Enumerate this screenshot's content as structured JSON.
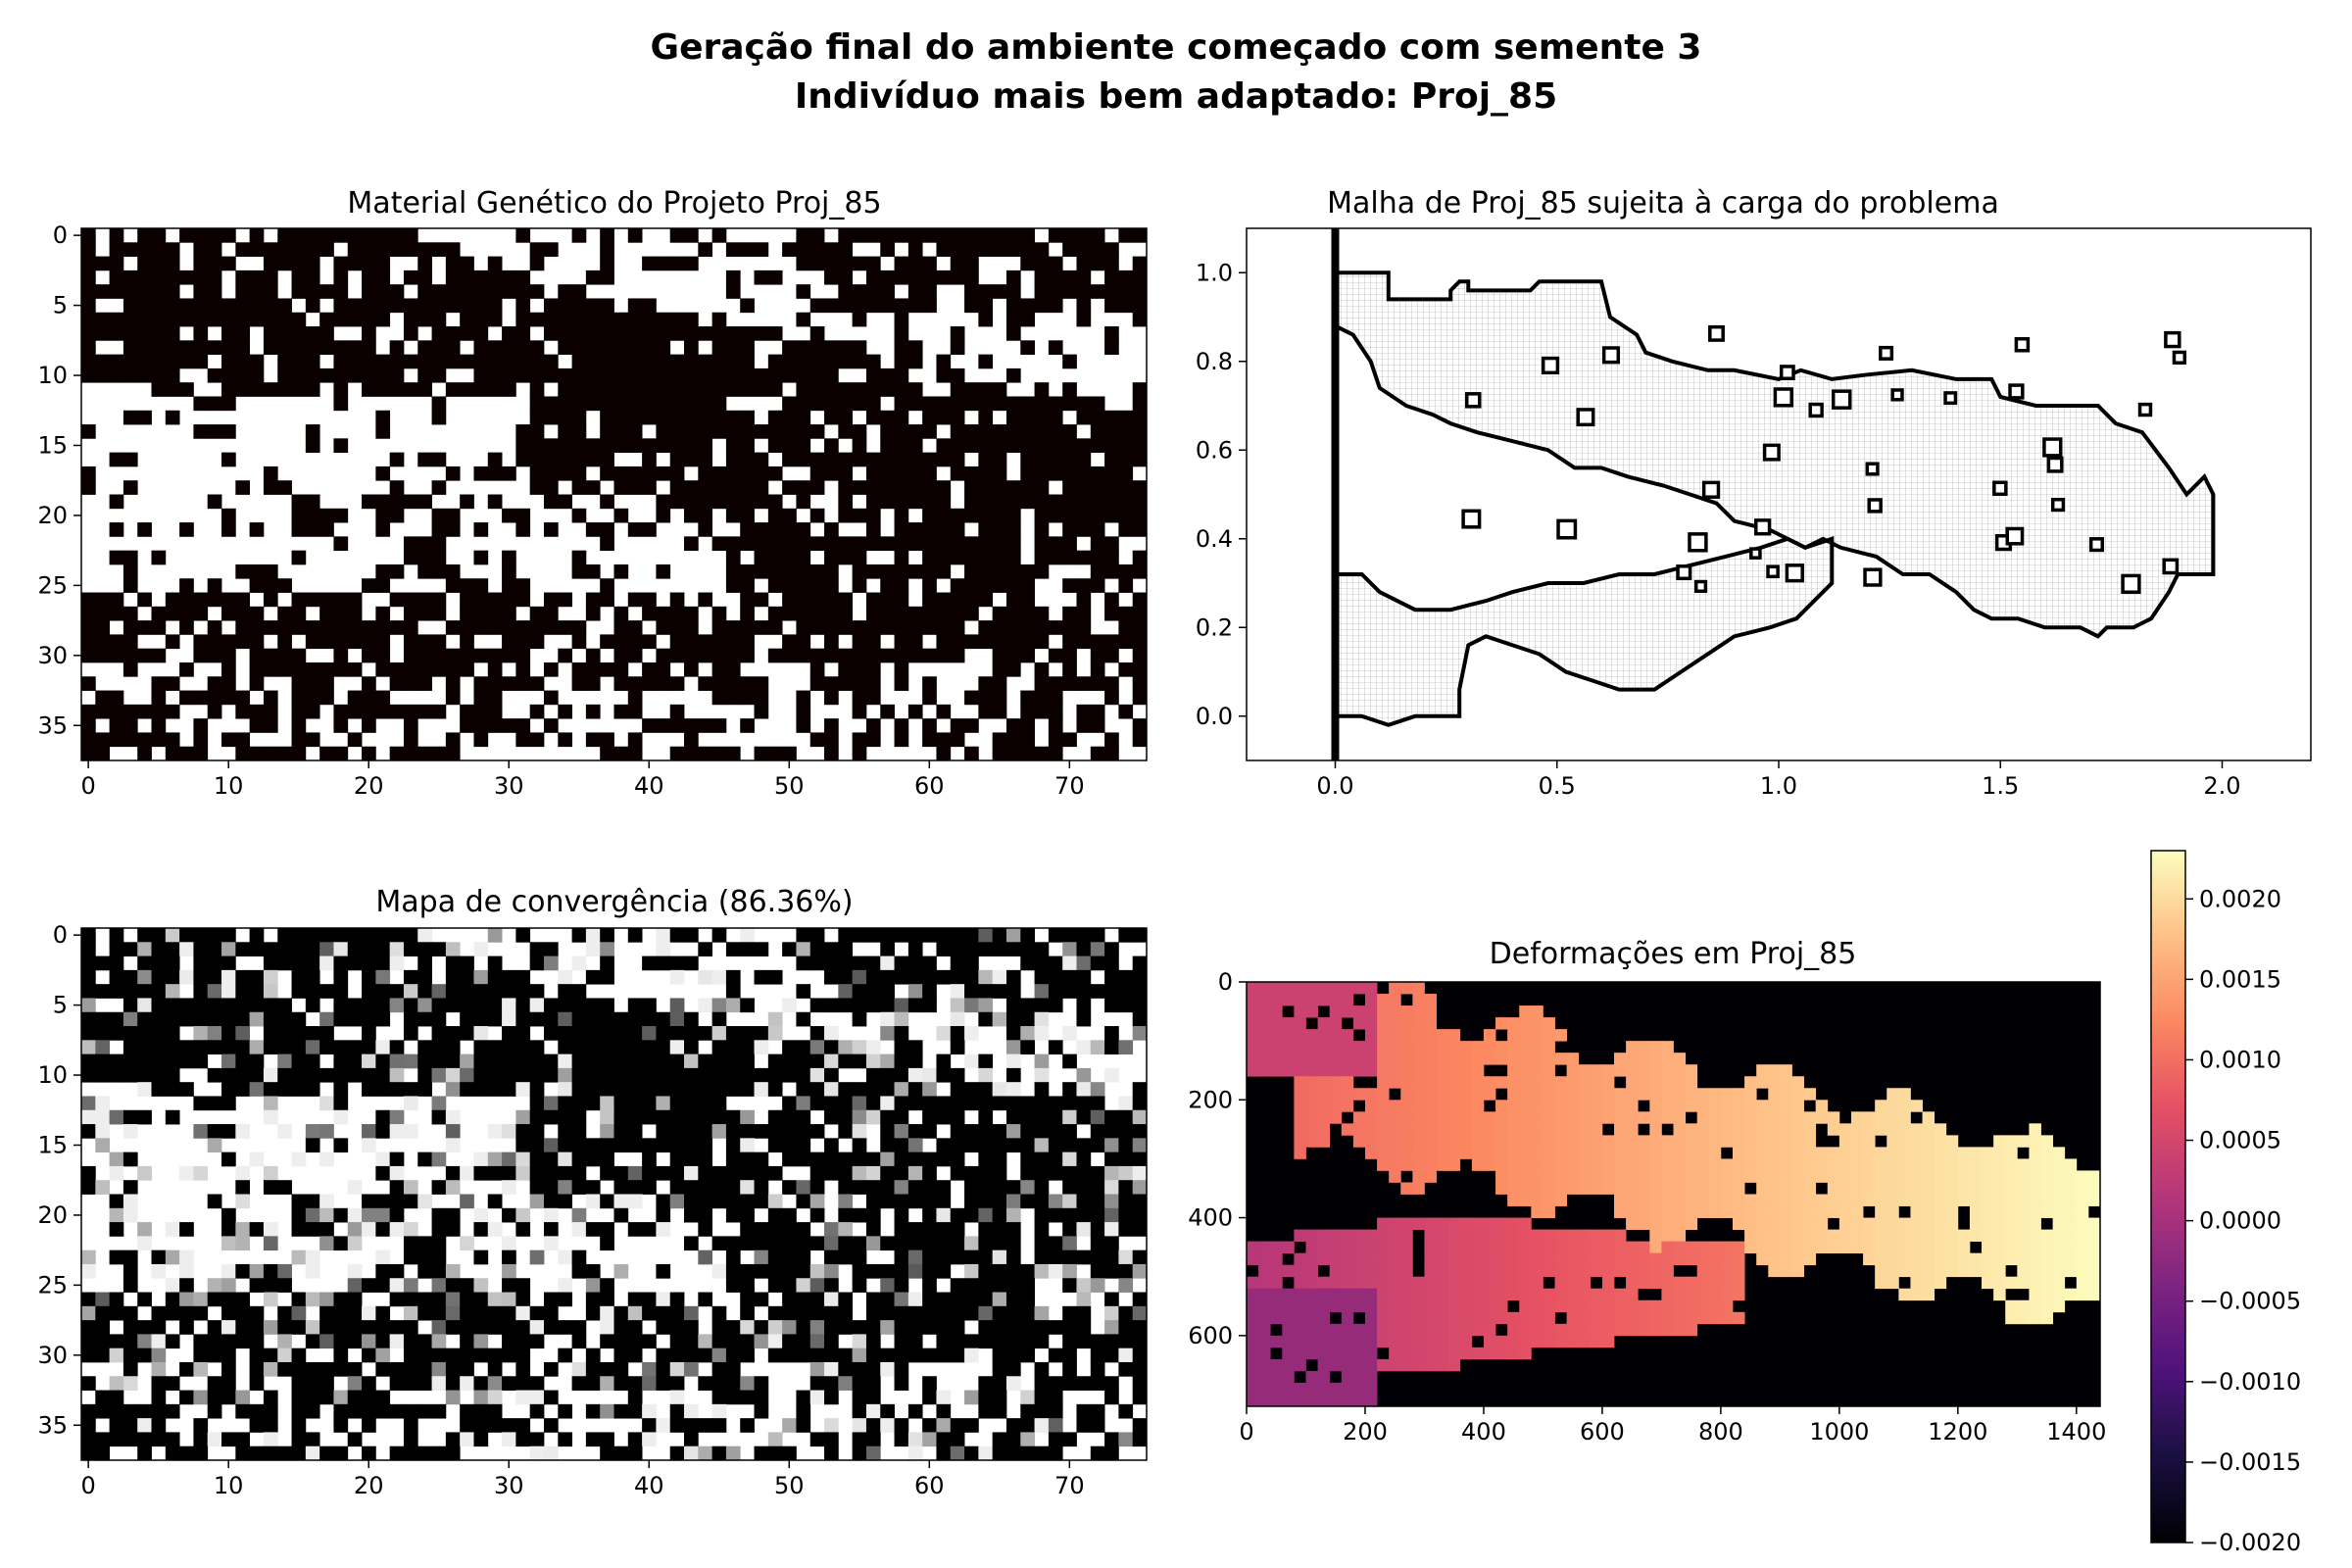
{
  "figure": {
    "title_line1": "Geração final do ambiente começado com semente 3",
    "title_line2": "Indivíduo mais bem adaptado: Proj_85"
  },
  "chart_data": [
    {
      "type": "heatmap",
      "title": "Material Genético do Projeto Proj_85",
      "colormap": "binary (black/white)",
      "grid": {
        "cols": 76,
        "rows": 38
      },
      "xticks": [
        "0",
        "10",
        "20",
        "30",
        "40",
        "50",
        "60",
        "70"
      ],
      "yticks": [
        "0",
        "5",
        "10",
        "15",
        "20",
        "25",
        "30",
        "35"
      ],
      "xlim": [
        -0.5,
        75.5
      ],
      "ylim": [
        37.5,
        -0.5
      ],
      "description_values": "binary matrix; 1 = black cell (material), 0 = white"
    },
    {
      "type": "line",
      "title": "Malha de Proj_85 sujeita à carga do problema",
      "xticks": [
        "0.0",
        "0.5",
        "1.0",
        "1.5",
        "2.0"
      ],
      "yticks": [
        "0.0",
        "0.2",
        "0.4",
        "0.6",
        "0.8",
        "1.0"
      ],
      "xlim": [
        -0.2,
        2.2
      ],
      "ylim": [
        -0.1,
        1.1
      ],
      "outlines": [
        {
          "name": "upper-branch",
          "points": [
            [
              0.0,
              1.0
            ],
            [
              0.12,
              1.0
            ],
            [
              0.12,
              0.94
            ],
            [
              0.26,
              0.94
            ],
            [
              0.26,
              0.96
            ],
            [
              0.28,
              0.98
            ],
            [
              0.3,
              0.98
            ],
            [
              0.3,
              0.96
            ],
            [
              0.44,
              0.96
            ],
            [
              0.46,
              0.98
            ],
            [
              0.6,
              0.98
            ],
            [
              0.62,
              0.9
            ],
            [
              0.68,
              0.86
            ],
            [
              0.7,
              0.82
            ],
            [
              0.76,
              0.8
            ],
            [
              0.84,
              0.78
            ],
            [
              0.9,
              0.78
            ],
            [
              1.0,
              0.76
            ],
            [
              1.05,
              0.78
            ],
            [
              1.12,
              0.76
            ],
            [
              1.2,
              0.77
            ],
            [
              1.3,
              0.78
            ],
            [
              1.4,
              0.76
            ],
            [
              1.48,
              0.76
            ],
            [
              1.5,
              0.72
            ],
            [
              1.58,
              0.7
            ],
            [
              1.66,
              0.7
            ],
            [
              1.72,
              0.7
            ],
            [
              1.76,
              0.66
            ],
            [
              1.82,
              0.64
            ],
            [
              1.88,
              0.56
            ],
            [
              1.92,
              0.5
            ],
            [
              1.96,
              0.54
            ],
            [
              1.98,
              0.5
            ],
            [
              1.98,
              0.32
            ],
            [
              1.9,
              0.32
            ],
            [
              1.88,
              0.28
            ],
            [
              1.84,
              0.22
            ],
            [
              1.8,
              0.2
            ],
            [
              1.74,
              0.2
            ],
            [
              1.72,
              0.18
            ],
            [
              1.68,
              0.2
            ],
            [
              1.6,
              0.2
            ],
            [
              1.54,
              0.22
            ],
            [
              1.48,
              0.22
            ],
            [
              1.44,
              0.24
            ],
            [
              1.4,
              0.28
            ],
            [
              1.34,
              0.32
            ],
            [
              1.28,
              0.32
            ],
            [
              1.22,
              0.36
            ],
            [
              1.14,
              0.38
            ],
            [
              1.1,
              0.4
            ],
            [
              1.06,
              0.38
            ],
            [
              0.98,
              0.42
            ],
            [
              0.9,
              0.44
            ],
            [
              0.86,
              0.48
            ],
            [
              0.8,
              0.5
            ],
            [
              0.74,
              0.52
            ],
            [
              0.66,
              0.54
            ],
            [
              0.6,
              0.56
            ],
            [
              0.54,
              0.56
            ],
            [
              0.48,
              0.6
            ],
            [
              0.4,
              0.62
            ],
            [
              0.32,
              0.64
            ],
            [
              0.26,
              0.66
            ],
            [
              0.22,
              0.68
            ],
            [
              0.16,
              0.7
            ],
            [
              0.1,
              0.74
            ],
            [
              0.08,
              0.8
            ],
            [
              0.04,
              0.86
            ],
            [
              0.0,
              0.88
            ]
          ]
        },
        {
          "name": "lower-branch",
          "points": [
            [
              0.0,
              0.32
            ],
            [
              0.06,
              0.32
            ],
            [
              0.1,
              0.28
            ],
            [
              0.18,
              0.24
            ],
            [
              0.26,
              0.24
            ],
            [
              0.34,
              0.26
            ],
            [
              0.4,
              0.28
            ],
            [
              0.48,
              0.3
            ],
            [
              0.56,
              0.3
            ],
            [
              0.64,
              0.32
            ],
            [
              0.72,
              0.32
            ],
            [
              0.8,
              0.34
            ],
            [
              0.88,
              0.36
            ],
            [
              0.96,
              0.38
            ],
            [
              1.02,
              0.4
            ],
            [
              1.06,
              0.38
            ],
            [
              1.12,
              0.4
            ],
            [
              1.12,
              0.3
            ],
            [
              1.08,
              0.26
            ],
            [
              1.04,
              0.22
            ],
            [
              0.98,
              0.2
            ],
            [
              0.9,
              0.18
            ],
            [
              0.84,
              0.14
            ],
            [
              0.78,
              0.1
            ],
            [
              0.72,
              0.06
            ],
            [
              0.64,
              0.06
            ],
            [
              0.58,
              0.08
            ],
            [
              0.52,
              0.1
            ],
            [
              0.46,
              0.14
            ],
            [
              0.4,
              0.16
            ],
            [
              0.34,
              0.18
            ],
            [
              0.3,
              0.16
            ],
            [
              0.28,
              0.06
            ],
            [
              0.28,
              0.0
            ],
            [
              0.18,
              0.0
            ],
            [
              0.12,
              -0.02
            ],
            [
              0.06,
              0.0
            ],
            [
              0.0,
              0.0
            ]
          ]
        }
      ],
      "support_line_x": 0.0
    },
    {
      "type": "heatmap",
      "title": "Mapa de convergência (86.36%)",
      "colormap": "gray (black/white with gray levels)",
      "grid": {
        "cols": 76,
        "rows": 38
      },
      "xticks": [
        "0",
        "10",
        "20",
        "30",
        "40",
        "50",
        "60",
        "70"
      ],
      "yticks": [
        "0",
        "5",
        "10",
        "15",
        "20",
        "25",
        "30",
        "35"
      ],
      "xlim": [
        -0.5,
        75.5
      ],
      "ylim": [
        37.5,
        -0.5
      ],
      "convergence": "86.36%"
    },
    {
      "type": "heatmap",
      "title": "Deformações em Proj_85",
      "colormap": "magma",
      "xticks": [
        "0",
        "200",
        "400",
        "600",
        "800",
        "1000",
        "1200",
        "1400"
      ],
      "yticks": [
        "0",
        "200",
        "400",
        "600"
      ],
      "xlim": [
        0,
        1440
      ],
      "ylim": [
        720,
        0
      ],
      "colorbar": {
        "min": -0.002,
        "max": 0.0023,
        "ticks": [
          "0.0020",
          "0.0015",
          "0.0010",
          "0.0005",
          "0.0000",
          "−0.0005",
          "−0.0010",
          "−0.0015",
          "−0.0020"
        ]
      }
    }
  ]
}
